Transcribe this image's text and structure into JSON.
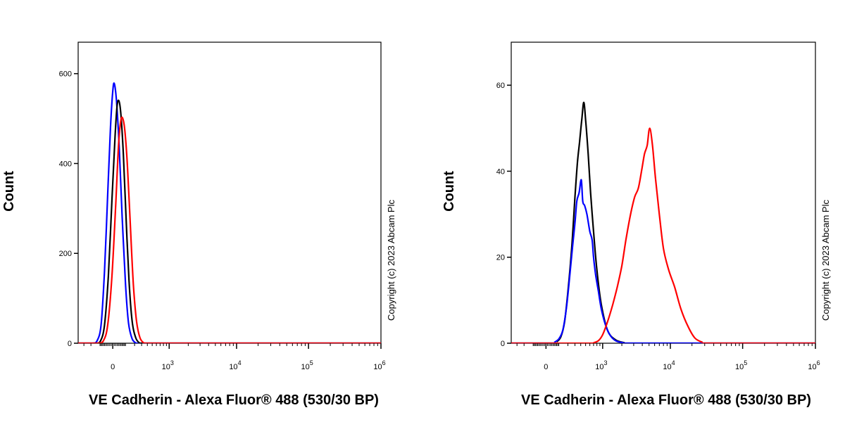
{
  "chart_data": [
    {
      "type": "line",
      "title": "",
      "xlabel": "VE Cadherin - Alexa Fluor® 488 (530/30 BP)",
      "ylabel": "Count",
      "ylim": [
        0,
        670
      ],
      "xscale": "biexponential",
      "y_ticks": [
        0,
        200,
        400,
        600
      ],
      "x_ticks": [
        {
          "value": 0,
          "base": "0",
          "exp": ""
        },
        {
          "value": 1000,
          "base": "10",
          "exp": "3"
        },
        {
          "value": 10000,
          "base": "10",
          "exp": "4"
        },
        {
          "value": 100000,
          "base": "10",
          "exp": "5"
        },
        {
          "value": 1000000,
          "base": "10",
          "exp": "6"
        }
      ],
      "copyright": "Copyright (c) 2023 Abcam Plc",
      "grid": false,
      "series": [
        {
          "color": "#0000ff",
          "x": [
            -180,
            -130,
            -90,
            -60,
            -35,
            -15,
            0,
            10,
            25,
            45,
            70,
            100,
            130,
            170,
            220
          ],
          "y": [
            0,
            5,
            40,
            160,
            330,
            480,
            560,
            578,
            540,
            440,
            280,
            130,
            45,
            10,
            0
          ]
        },
        {
          "color": "#000000",
          "x": [
            -140,
            -95,
            -60,
            -30,
            -5,
            15,
            30,
            45,
            60,
            80,
            105,
            135,
            170,
            215,
            270
          ],
          "y": [
            0,
            5,
            40,
            150,
            320,
            460,
            530,
            538,
            505,
            420,
            280,
            140,
            50,
            12,
            0
          ]
        },
        {
          "color": "#ff0000",
          "x": [
            -120,
            -70,
            -35,
            -5,
            20,
            40,
            58,
            75,
            95,
            120,
            150,
            185,
            225,
            275,
            340
          ],
          "y": [
            0,
            5,
            40,
            150,
            310,
            440,
            495,
            500,
            470,
            390,
            260,
            130,
            50,
            12,
            0
          ]
        }
      ]
    },
    {
      "type": "line",
      "title": "",
      "xlabel": "VE Cadherin - Alexa Fluor® 488 (530/30 BP)",
      "ylabel": "Count",
      "ylim": [
        0,
        70
      ],
      "xscale": "biexponential",
      "y_ticks": [
        0,
        20,
        40,
        60
      ],
      "x_ticks": [
        {
          "value": 0,
          "base": "0",
          "exp": ""
        },
        {
          "value": 1000,
          "base": "10",
          "exp": "3"
        },
        {
          "value": 10000,
          "base": "10",
          "exp": "4"
        },
        {
          "value": 100000,
          "base": "10",
          "exp": "5"
        },
        {
          "value": 1000000,
          "base": "10",
          "exp": "6"
        }
      ],
      "copyright": "Copyright (c) 2023 Abcam Plc",
      "grid": false,
      "series": [
        {
          "color": "#000000",
          "x": [
            80,
            120,
            160,
            200,
            250,
            300,
            340,
            380,
            420,
            460,
            500,
            560,
            620,
            700,
            800,
            950,
            1200,
            1600,
            2200
          ],
          "y": [
            0.3,
            1.5,
            5,
            12,
            22,
            34,
            42,
            47,
            52,
            56,
            52,
            44,
            35,
            26,
            17,
            9,
            3,
            0.8,
            0.1
          ]
        },
        {
          "color": "#0000ff",
          "x": [
            60,
            100,
            140,
            180,
            220,
            260,
            300,
            330,
            370,
            410,
            440,
            480,
            530,
            600,
            660,
            700,
            760,
            850,
            950,
            1100,
            1300,
            1600,
            2100
          ],
          "y": [
            0.2,
            1,
            3,
            8,
            15,
            22,
            28,
            33,
            35,
            38,
            33,
            32,
            30,
            26,
            24,
            20,
            16,
            12,
            8,
            4.5,
            2,
            0.6,
            0.1
          ]
        },
        {
          "color": "#ff0000",
          "x": [
            700,
            850,
            1000,
            1200,
            1450,
            1700,
            2000,
            2300,
            2700,
            3100,
            3500,
            3900,
            4300,
            4700,
            5100,
            5600,
            6200,
            7000,
            8000,
            9500,
            11500,
            14000,
            17500,
            22000,
            28000
          ],
          "y": [
            0.1,
            0.6,
            2,
            5,
            9,
            13,
            18,
            24,
            30,
            34,
            36,
            40,
            44,
            46,
            50,
            46,
            38,
            30,
            22,
            17,
            13,
            8,
            4,
            1.2,
            0.2
          ]
        }
      ]
    }
  ]
}
